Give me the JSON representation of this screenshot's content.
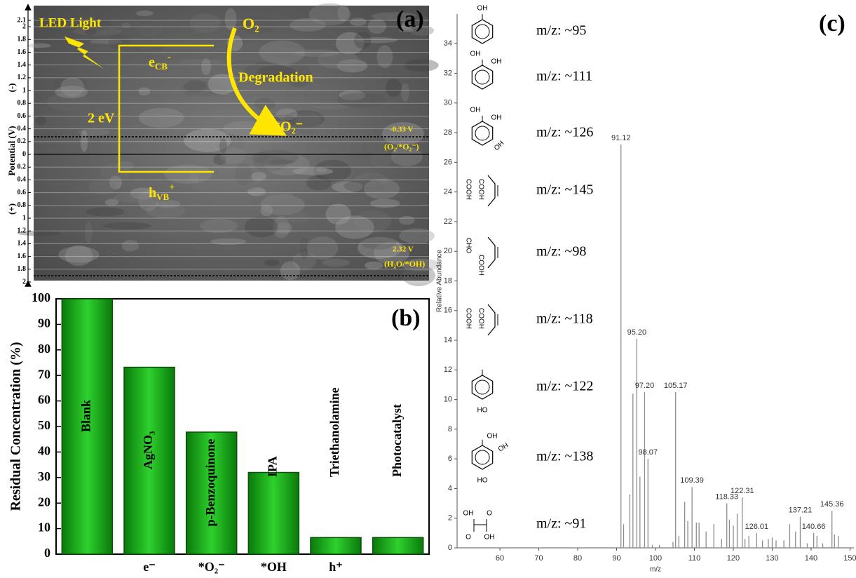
{
  "panel_a": {
    "label": "(a)",
    "light": "LED Light",
    "oxygen": "O₂",
    "cb": {
      "base": "e",
      "sub": "CB",
      "sup": "-"
    },
    "vb": {
      "base": "h",
      "sub": "VB",
      "sup": "+"
    },
    "gap": "2 eV",
    "process": "Degradation",
    "radical": "*O₂⁻",
    "cb_potential": "-0.33 V",
    "cb_couple": "(O₂/*O₂⁻)",
    "vb_potential": "2.32 V",
    "vb_couple": "(H₂O/*OH)",
    "axis": {
      "label": "Potential (V)",
      "negative": "(-)",
      "positive": "(+)",
      "ylim": [
        -2.1,
        2.0
      ],
      "yticks": [
        {
          "value": -2.1,
          "label": "2.1"
        },
        {
          "value": -2,
          "label": "2"
        },
        {
          "value": -1.8,
          "label": "1.8"
        },
        {
          "value": -1.6,
          "label": "1.6"
        },
        {
          "value": -1.4,
          "label": "1.4"
        },
        {
          "value": -1.2,
          "label": "1.2"
        },
        {
          "value": -1,
          "label": "1"
        },
        {
          "value": -0.8,
          "label": "0.8"
        },
        {
          "value": -0.6,
          "label": "0.6"
        },
        {
          "value": -0.4,
          "label": "0.4"
        },
        {
          "value": -0.2,
          "label": "0.2"
        },
        0,
        0.2,
        0.4,
        0.6,
        0.8,
        1,
        1.2,
        1.4,
        1.6,
        1.8,
        2
      ]
    }
  },
  "chart_data": [
    {
      "type": "bar",
      "label": "(b)",
      "ylabel": "Residual Concentration (%)",
      "categories": [
        null,
        "e⁻",
        "*O₂⁻",
        "*OH",
        "h⁺",
        null
      ],
      "bar_labels": [
        "Blank",
        "AgNO₃",
        "p-Benzoquinone",
        "IPA",
        "Triethanolamine",
        "Photocatalyst"
      ],
      "values": [
        100,
        73.2,
        47.8,
        32,
        6.5,
        6.5
      ],
      "color": "#2ed12e",
      "ylim": [
        0,
        100
      ],
      "yticks": [
        0,
        10,
        20,
        30,
        40,
        50,
        60,
        70,
        80,
        90,
        100
      ]
    },
    {
      "type": "spectrum",
      "label": "(c)",
      "xlabel": "m/z",
      "ylabel": "Relative Abundance",
      "color": "#8c8c8c",
      "x": [
        91.12,
        91.8,
        93.4,
        94.2,
        95.2,
        96.0,
        97.2,
        98.07,
        99.2,
        101.0,
        104.5,
        105.17,
        106.0,
        107.5,
        108.3,
        109.39,
        110.5,
        111.2,
        113.0,
        115.0,
        117.0,
        118.33,
        119.0,
        120.0,
        121.0,
        122.31,
        123.0,
        124.0,
        126.01,
        127.5,
        129.0,
        130.0,
        131.0,
        133.0,
        134.5,
        136.0,
        137.21,
        139.0,
        140.66,
        141.5,
        143.0,
        145.36,
        146.0,
        147.0
      ],
      "values": [
        27.2,
        1.6,
        3.6,
        10.4,
        14.1,
        4.8,
        10.5,
        6.0,
        0.2,
        0.2,
        0.4,
        10.5,
        0.8,
        3.1,
        1.8,
        4.1,
        1.7,
        1.7,
        1.1,
        1.6,
        0.6,
        3.0,
        1.9,
        1.5,
        2.3,
        3.4,
        0.6,
        0.8,
        1.0,
        0.5,
        0.6,
        0.7,
        0.5,
        0.5,
        1.6,
        1.1,
        2.1,
        0.3,
        1.0,
        0.8,
        0.3,
        2.5,
        0.9,
        0.8
      ],
      "x_labels": [
        "91.12",
        null,
        null,
        null,
        "95.20",
        null,
        "97.20",
        "98.07",
        null,
        null,
        null,
        "105.17",
        null,
        null,
        null,
        "109.39",
        null,
        null,
        null,
        null,
        null,
        "118.33",
        null,
        null,
        null,
        "122.31",
        null,
        null,
        "126.01",
        null,
        null,
        null,
        null,
        null,
        null,
        null,
        "137.21",
        null,
        "140.66",
        null,
        null,
        "145.36",
        null,
        null
      ],
      "xlim": [
        49,
        151
      ],
      "xticks": [
        60,
        70,
        80,
        90,
        100,
        110,
        120,
        130,
        140,
        150
      ],
      "ylim": [
        0,
        36
      ],
      "yticks": [
        0,
        2,
        4,
        6,
        8,
        10,
        12,
        14,
        16,
        18,
        20,
        22,
        24,
        26,
        28,
        30,
        32,
        34
      ],
      "structures": [
        {
          "mz": "m/z: ~95",
          "groups": [
            "OH"
          ]
        },
        {
          "mz": "m/z: ~111",
          "groups": [
            "OH",
            "OH"
          ]
        },
        {
          "mz": "m/z: ~126",
          "groups": [
            "OH",
            "OH",
            "OH"
          ]
        },
        {
          "mz": "m/z: ~145",
          "groups": [
            "COOH",
            "COOH"
          ]
        },
        {
          "mz": "m/z: ~98",
          "groups": [
            "CHO",
            "COOH"
          ]
        },
        {
          "mz": "m/z: ~118",
          "groups": [
            "COOH",
            "COOH"
          ]
        },
        {
          "mz": "m/z: ~122",
          "groups": [
            "HO"
          ]
        },
        {
          "mz": "m/z: ~138",
          "groups": [
            "OH",
            "OH",
            "HO"
          ]
        },
        {
          "mz": "m/z: ~91",
          "groups": [
            "OH",
            "O",
            "O",
            "OH"
          ]
        }
      ]
    }
  ]
}
